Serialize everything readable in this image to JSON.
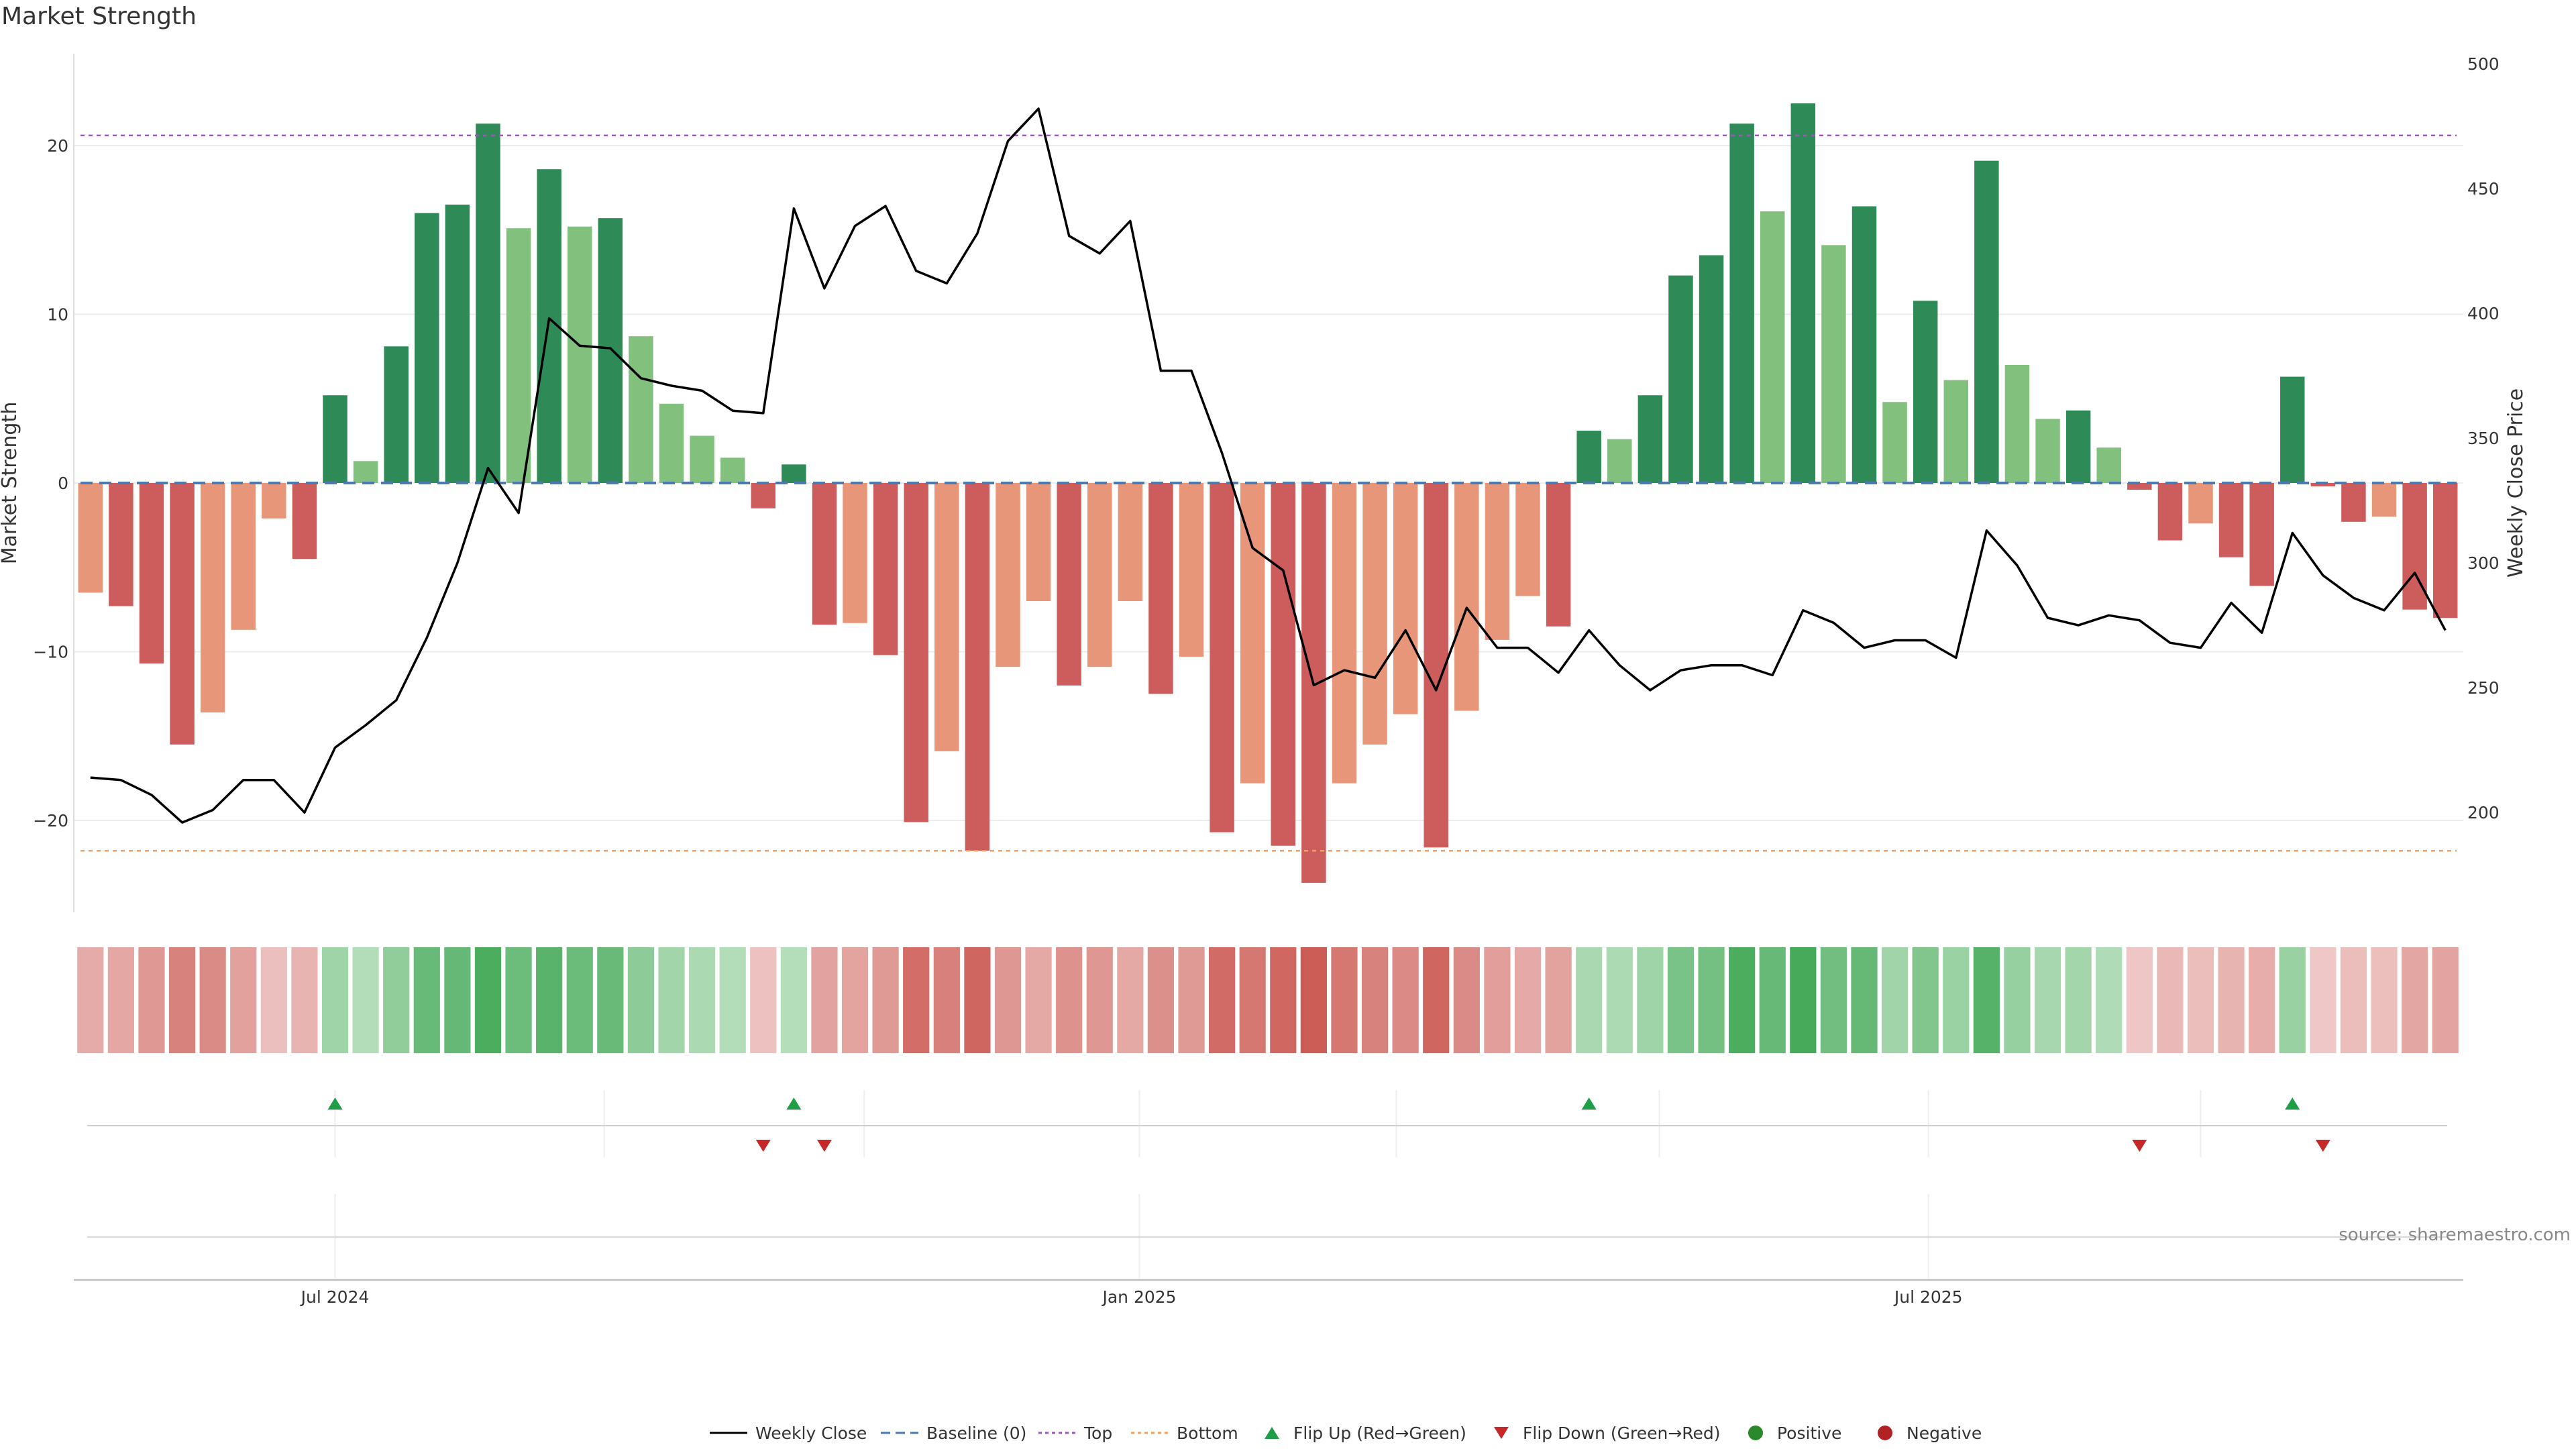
{
  "chart_data": {
    "type": "bar",
    "title": "Market Strength",
    "ylabel_left": "Market Strength",
    "ylabel_right": "Weekly Close Price",
    "ylim_left": [
      -25.5,
      25.5
    ],
    "ylim_right": [
      160,
      500
    ],
    "yticks_left": [
      20,
      10,
      0,
      -10,
      -20
    ],
    "yticks_left_labels": [
      "20",
      "10",
      "0",
      "−10",
      "−20"
    ],
    "yticks_right": [
      500,
      450,
      400,
      350,
      300,
      250,
      200
    ],
    "yticks_right_labels": [
      "500",
      "450",
      "400",
      "350",
      "300",
      "250",
      "200"
    ],
    "x_tick_labels": [
      {
        "label": "Jul 2024",
        "week_index": 8.5
      },
      {
        "label": "Jan 2025",
        "week_index": 34.8
      },
      {
        "label": "Jul 2025",
        "week_index": 60.6
      }
    ],
    "top_line": 20.6,
    "bottom_line": -21.8,
    "baseline": 0,
    "market_strength": [
      -6.5,
      -7.3,
      -10.7,
      -15.5,
      -13.6,
      -8.7,
      -2.1,
      -4.5,
      5.2,
      1.3,
      8.1,
      16.0,
      16.5,
      21.3,
      15.1,
      18.6,
      15.2,
      15.7,
      8.7,
      4.7,
      2.8,
      1.5,
      -1.5,
      1.1,
      -8.4,
      -8.3,
      -10.2,
      -20.1,
      -15.9,
      -21.8,
      -10.9,
      -7.0,
      -12.0,
      -10.9,
      -7.0,
      -12.5,
      -10.3,
      -20.7,
      -17.8,
      -21.5,
      -23.7,
      -17.8,
      -15.5,
      -13.7,
      -21.6,
      -13.5,
      -9.3,
      -6.7,
      -8.5,
      3.1,
      2.6,
      5.2,
      12.3,
      13.5,
      21.3,
      16.1,
      22.5,
      14.1,
      16.4,
      4.8,
      10.8,
      6.1,
      19.1,
      7.0,
      3.8,
      4.3,
      2.1,
      -0.4,
      -3.4,
      -2.4,
      -4.4,
      -6.1,
      6.3,
      -0.2,
      -2.3,
      -2.0,
      -7.5,
      -8.0
    ],
    "bar_shade": [
      "light",
      "dark",
      "dark",
      "dark",
      "light",
      "light",
      "light",
      "dark",
      "dark",
      "light",
      "dark",
      "dark",
      "dark",
      "dark",
      "light",
      "dark",
      "light",
      "dark",
      "light",
      "light",
      "light",
      "light",
      "dark",
      "dark",
      "dark",
      "light",
      "dark",
      "dark",
      "light",
      "dark",
      "light",
      "light",
      "dark",
      "light",
      "light",
      "dark",
      "light",
      "dark",
      "light",
      "dark",
      "dark",
      "light",
      "light",
      "light",
      "dark",
      "light",
      "light",
      "light",
      "dark",
      "dark",
      "light",
      "dark",
      "dark",
      "dark",
      "dark",
      "light",
      "dark",
      "light",
      "dark",
      "light",
      "dark",
      "light",
      "dark",
      "light",
      "light",
      "dark",
      "light",
      "dark",
      "dark",
      "light",
      "dark",
      "dark",
      "dark",
      "dark",
      "dark",
      "light",
      "dark",
      "dark"
    ],
    "weekly_close": [
      214,
      213,
      207,
      196,
      201,
      213,
      213,
      200,
      226,
      235,
      245,
      270,
      300,
      338,
      320,
      398,
      387,
      386,
      374,
      371,
      369,
      361,
      360,
      442,
      410,
      435,
      443,
      417,
      412,
      432,
      469,
      482,
      431,
      424,
      437,
      377,
      377,
      344,
      306,
      297,
      251,
      257,
      254,
      273,
      249,
      282,
      266,
      266,
      256,
      273,
      259,
      249,
      257,
      259,
      259,
      255,
      281,
      276,
      266,
      269,
      269,
      262,
      313,
      299,
      278,
      275,
      279,
      277,
      268,
      266,
      284,
      272,
      312,
      295,
      286,
      281,
      296,
      273
    ],
    "flip_up_weeks": [
      8,
      23,
      49,
      72
    ],
    "flip_down_weeks": [
      22,
      24,
      67,
      73
    ],
    "source": "source: sharemaestro.com",
    "legend": [
      "Weekly Close",
      "Baseline (0)",
      "Top",
      "Bottom",
      "Flip Up (Red→Green)",
      "Flip Down (Green→Red)",
      "Positive",
      "Negative"
    ],
    "colors": {
      "pos_dark": "#2e8b57",
      "pos_light": "#82c07e",
      "neg_dark": "#cd5c5c",
      "neg_light": "#e8967a",
      "price_line": "#000000",
      "baseline": "#4a7ab0",
      "top": "#9b59b6",
      "bottom": "#f0a060",
      "flip_up": "#1f9e47",
      "flip_down": "#c62828",
      "positive_dot": "#2a8a2a",
      "negative_dot": "#b22222"
    }
  }
}
